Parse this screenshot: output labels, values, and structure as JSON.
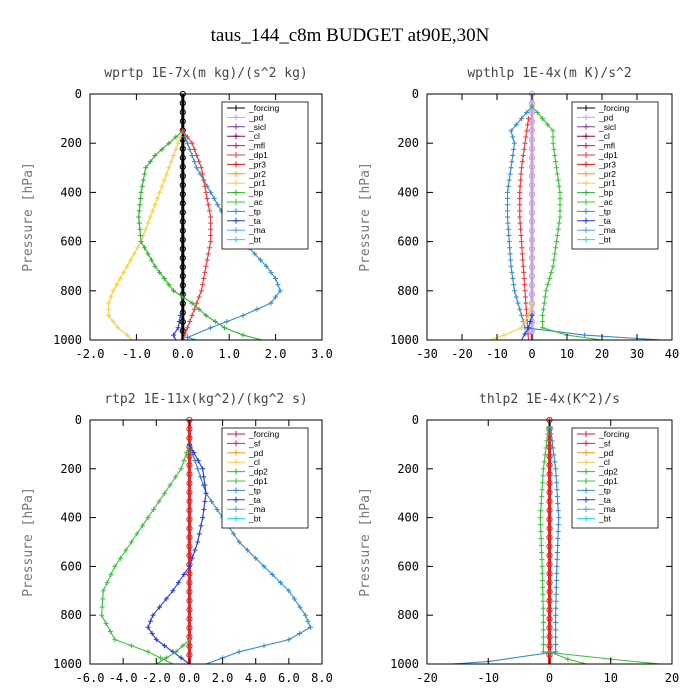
{
  "title": "taus_144_c8m  BUDGET at90E,30N",
  "colors": {
    "forcing": "#000000",
    "pd": "#c8a0e8",
    "sicl": "#8a3ea0",
    "cl": "#8a0a4a",
    "mfl": "#c8184c",
    "dp1": "#e83a3a",
    "pr3": "#e81818",
    "pr2": "#f0a020",
    "pr1": "#f8d040",
    "bp": "#30b030",
    "ac": "#40c040",
    "tp": "#3a8ac8",
    "ta": "#2a3ad8",
    "ma": "#60a0e0",
    "bt": "#20d8e8",
    "sf": "#e02828",
    "dp2": "#40b040"
  },
  "chart_data": [
    {
      "type": "line",
      "title": "wprtp  1E-7x(m kg)/(s^2 kg)",
      "ylabel": "Pressure [hPa]",
      "xlim": [
        -2.0,
        3.0
      ],
      "ylim": [
        1000,
        0
      ],
      "y_inverted": true,
      "xticks": [
        -2.0,
        -1.0,
        0.0,
        1.0,
        2.0,
        3.0
      ],
      "xtick_labels": [
        "-2.0",
        "-1.0",
        "0.0",
        "1.0",
        "2.0",
        "3.0"
      ],
      "yticks": [
        0,
        200,
        400,
        600,
        800,
        1000
      ],
      "ytick_labels": [
        "0",
        "200",
        "400",
        "600",
        "800",
        "1000"
      ],
      "legend": [
        "_forcing",
        "_pd",
        "_sicl",
        "_cl",
        "_mfl",
        "_dp1",
        "_pr3",
        "_pr2",
        "_pr1",
        "_bp",
        "_ac",
        "_tp",
        "_ta",
        "_ma",
        "_bt"
      ],
      "legend_keys": [
        "forcing",
        "pd",
        "sicl",
        "cl",
        "mfl",
        "dp1",
        "pr3",
        "pr2",
        "pr1",
        "bp",
        "ac",
        "tp",
        "ta",
        "ma",
        "bt"
      ],
      "legend_position": "top-right",
      "series": [
        {
          "name": "_forcing",
          "key": "forcing",
          "y": [
            0,
            1000
          ],
          "x": [
            0,
            0
          ]
        },
        {
          "name": "_pr1",
          "key": "pr1",
          "y": [
            150,
            200,
            300,
            400,
            500,
            600,
            700,
            800,
            850,
            900,
            950,
            980,
            1000
          ],
          "x": [
            0,
            -0.1,
            -0.3,
            -0.5,
            -0.7,
            -0.9,
            -1.2,
            -1.5,
            -1.6,
            -1.6,
            -1.4,
            -1.2,
            -1.1
          ]
        },
        {
          "name": "_bp",
          "key": "bp",
          "y": [
            150,
            200,
            250,
            300,
            400,
            500,
            600,
            700,
            800,
            850,
            900,
            950,
            980,
            1000
          ],
          "x": [
            0,
            -0.3,
            -0.6,
            -0.8,
            -0.9,
            -0.95,
            -0.9,
            -0.6,
            -0.2,
            0.2,
            0.5,
            0.9,
            1.3,
            1.7
          ]
        },
        {
          "name": "_tp",
          "key": "tp",
          "y": [
            150,
            200,
            300,
            400,
            500,
            600,
            700,
            750,
            800,
            850,
            900,
            950,
            990,
            1000
          ],
          "x": [
            0,
            0.1,
            0.3,
            0.6,
            0.9,
            1.3,
            1.8,
            2.0,
            2.1,
            1.9,
            1.3,
            0.6,
            0.1,
            0.3
          ]
        },
        {
          "name": "_dp1",
          "key": "dp1",
          "y": [
            150,
            200,
            300,
            400,
            500,
            600,
            700,
            800,
            900,
            950,
            1000
          ],
          "x": [
            0,
            0.2,
            0.4,
            0.5,
            0.6,
            0.6,
            0.5,
            0.4,
            0.2,
            0.1,
            0
          ]
        },
        {
          "name": "_ta",
          "key": "ta",
          "y": [
            900,
            950,
            980,
            1000
          ],
          "x": [
            -0.05,
            -0.1,
            -0.2,
            -0.15
          ]
        }
      ]
    },
    {
      "type": "line",
      "title": "wpthlp  1E-4x(m K)/s^2",
      "ylabel": "Pressure [hPa]",
      "xlim": [
        -30,
        40
      ],
      "ylim": [
        1000,
        0
      ],
      "y_inverted": true,
      "xticks": [
        -30,
        -20,
        -10,
        0,
        10,
        20,
        30,
        40
      ],
      "xtick_labels": [
        "-30",
        "-20",
        "-10",
        "0",
        "10",
        "20",
        "30",
        "40"
      ],
      "yticks": [
        0,
        200,
        400,
        600,
        800,
        1000
      ],
      "ytick_labels": [
        "0",
        "200",
        "400",
        "600",
        "800",
        "1000"
      ],
      "legend": [
        "_forcing",
        "_pd",
        "_sicl",
        "_cl",
        "_mfl",
        "_dp1",
        "_pr3",
        "_pr2",
        "_pr1",
        "_bp",
        "_ac",
        "_tp",
        "_ta",
        "_ma",
        "_bt"
      ],
      "legend_keys": [
        "forcing",
        "pd",
        "sicl",
        "cl",
        "mfl",
        "dp1",
        "pr3",
        "pr2",
        "pr1",
        "bp",
        "ac",
        "tp",
        "ta",
        "ma",
        "bt"
      ],
      "legend_position": "top-right",
      "series": [
        {
          "name": "_forcing",
          "key": "pd",
          "y": [
            0,
            1000
          ],
          "x": [
            0,
            0
          ]
        },
        {
          "name": "_tp",
          "key": "tp",
          "y": [
            50,
            100,
            150,
            200,
            300,
            400,
            500,
            600,
            700,
            800,
            850,
            900,
            950,
            980,
            1000
          ],
          "x": [
            0,
            -3,
            -6,
            -5,
            -6,
            -7,
            -7,
            -6.5,
            -6,
            -5,
            -4,
            -3,
            -2,
            15,
            37
          ]
        },
        {
          "name": "_ac",
          "key": "ac",
          "y": [
            50,
            100,
            150,
            200,
            300,
            400,
            500,
            600,
            700,
            800,
            900,
            950,
            980,
            1000
          ],
          "x": [
            0,
            3,
            6,
            6,
            7,
            8,
            8,
            7,
            6,
            4,
            3,
            3,
            10,
            20
          ]
        },
        {
          "name": "_dp1",
          "key": "dp1",
          "y": [
            100,
            200,
            300,
            400,
            500,
            600,
            700,
            800,
            900,
            1000
          ],
          "x": [
            -1,
            -2,
            -3,
            -3.5,
            -3.5,
            -3,
            -2.5,
            -2,
            -1.5,
            -1
          ]
        },
        {
          "name": "_pr1",
          "key": "pr1",
          "y": [
            850,
            900,
            950,
            980,
            1000
          ],
          "x": [
            0,
            -1,
            -3,
            -8,
            -12
          ]
        },
        {
          "name": "_ta",
          "key": "ta",
          "y": [
            900,
            950,
            1000
          ],
          "x": [
            0,
            -1,
            -3
          ]
        }
      ]
    },
    {
      "type": "line",
      "title": "rtp2  1E-11x(kg^2)/(kg^2 s)",
      "ylabel": "Pressure [hPa]",
      "xlim": [
        -6.0,
        8.0
      ],
      "ylim": [
        1000,
        0
      ],
      "y_inverted": true,
      "xticks": [
        -6.0,
        -4.0,
        -2.0,
        0.0,
        2.0,
        4.0,
        6.0,
        8.0
      ],
      "xtick_labels": [
        "-6.0",
        "-4.0",
        "-2.0",
        "0.0",
        "2.0",
        "4.0",
        "6.0",
        "8.0"
      ],
      "yticks": [
        0,
        200,
        400,
        600,
        800,
        1000
      ],
      "ytick_labels": [
        "0",
        "200",
        "400",
        "600",
        "800",
        "1000"
      ],
      "legend": [
        "_forcing",
        "_sf",
        "_pd",
        "_cl",
        "_dp2",
        "_dp1",
        "_tp",
        "_ta",
        "_ma",
        "_bt"
      ],
      "legend_keys": [
        "mfl",
        "sf",
        "pr2",
        "pr1",
        "dp2",
        "ac",
        "tp",
        "ta",
        "ma",
        "bt"
      ],
      "legend_position": "top-right",
      "series": [
        {
          "name": "_forcing",
          "key": "sf",
          "y": [
            0,
            1000
          ],
          "x": [
            0,
            0
          ]
        },
        {
          "name": "_dp1",
          "key": "ac",
          "y": [
            100,
            200,
            300,
            400,
            500,
            600,
            700,
            800,
            900,
            950,
            1000
          ],
          "x": [
            0,
            -0.5,
            -1.5,
            -2.5,
            -3.5,
            -4.5,
            -5.2,
            -5.3,
            -4.5,
            -2.5,
            -1
          ]
        },
        {
          "name": "_tp",
          "key": "tp",
          "y": [
            100,
            200,
            300,
            400,
            500,
            600,
            700,
            800,
            850,
            900,
            950,
            1000
          ],
          "x": [
            0,
            0.5,
            1,
            2,
            3,
            4.5,
            6,
            7,
            7.3,
            6,
            3,
            1
          ]
        },
        {
          "name": "_ta",
          "key": "ta",
          "y": [
            100,
            200,
            300,
            400,
            500,
            600,
            700,
            800,
            850,
            900,
            950,
            1000
          ],
          "x": [
            0,
            0.8,
            1,
            0.8,
            0.5,
            0,
            -1,
            -2.2,
            -2.5,
            -2,
            -1,
            0
          ]
        },
        {
          "name": "_dp2",
          "key": "dp2",
          "y": [
            900,
            950,
            1000
          ],
          "x": [
            0,
            -0.8,
            -2
          ]
        }
      ]
    },
    {
      "type": "line",
      "title": "thlp2  1E-4x(K^2)/s",
      "ylabel": "Pressure [hPa]",
      "xlim": [
        -20,
        20
      ],
      "ylim": [
        1000,
        0
      ],
      "y_inverted": true,
      "xticks": [
        -20,
        -10,
        0,
        10,
        20
      ],
      "xtick_labels": [
        "-20",
        "-10",
        "0",
        "10",
        "20"
      ],
      "yticks": [
        0,
        200,
        400,
        600,
        800,
        1000
      ],
      "ytick_labels": [
        "0",
        "200",
        "400",
        "600",
        "800",
        "1000"
      ],
      "legend": [
        "_forcing",
        "_sf",
        "_pd",
        "_cl",
        "_dp2",
        "_dp1",
        "_tp",
        "_ta",
        "_ma",
        "_bt"
      ],
      "legend_keys": [
        "mfl",
        "sf",
        "pr2",
        "pr1",
        "dp2",
        "ac",
        "tp",
        "ta",
        "ma",
        "bt"
      ],
      "legend_position": "top-right",
      "series": [
        {
          "name": "_forcing",
          "key": "sf",
          "y": [
            0,
            1000
          ],
          "x": [
            0,
            0
          ]
        },
        {
          "name": "_dp1",
          "key": "ac",
          "y": [
            0,
            200,
            400,
            600,
            800,
            950,
            980,
            1000
          ],
          "x": [
            0,
            -1,
            -1.5,
            -1.2,
            -1,
            -1,
            10,
            18
          ]
        },
        {
          "name": "_tp",
          "key": "tp",
          "y": [
            0,
            200,
            400,
            600,
            800,
            950,
            990,
            1000
          ],
          "x": [
            0,
            1,
            1.5,
            1.2,
            1,
            1,
            -10,
            -16
          ]
        },
        {
          "name": "_dp2",
          "key": "dp2",
          "y": [
            950,
            980,
            1000
          ],
          "x": [
            0,
            3,
            6
          ]
        }
      ]
    }
  ]
}
